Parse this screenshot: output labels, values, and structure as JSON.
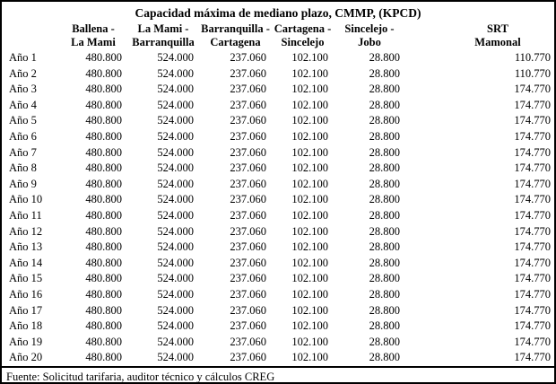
{
  "title": "Capacidad máxima de mediano plazo, CMMP, (KPCD)",
  "colors": {
    "border": "#000000",
    "text": "#000000",
    "background": "#ffffff"
  },
  "table": {
    "row_label_header": "",
    "columns": [
      {
        "line1": "Ballena -",
        "line2": "La Mami"
      },
      {
        "line1": "La Mami -",
        "line2": "Barranquilla"
      },
      {
        "line1": "Barranquilla -",
        "line2": "Cartagena"
      },
      {
        "line1": "Cartagena -",
        "line2": "Sincelejo"
      },
      {
        "line1": "Sincelejo -",
        "line2": "Jobo"
      },
      {
        "line1": "SRT",
        "line2": "Mamonal"
      }
    ],
    "rows": [
      {
        "label": "Año 1",
        "values": [
          "480.800",
          "524.000",
          "237.060",
          "102.100",
          "28.800",
          "110.770"
        ]
      },
      {
        "label": "Año 2",
        "values": [
          "480.800",
          "524.000",
          "237.060",
          "102.100",
          "28.800",
          "110.770"
        ]
      },
      {
        "label": "Año 3",
        "values": [
          "480.800",
          "524.000",
          "237.060",
          "102.100",
          "28.800",
          "174.770"
        ]
      },
      {
        "label": "Año 4",
        "values": [
          "480.800",
          "524.000",
          "237.060",
          "102.100",
          "28.800",
          "174.770"
        ]
      },
      {
        "label": "Año 5",
        "values": [
          "480.800",
          "524.000",
          "237.060",
          "102.100",
          "28.800",
          "174.770"
        ]
      },
      {
        "label": "Año 6",
        "values": [
          "480.800",
          "524.000",
          "237.060",
          "102.100",
          "28.800",
          "174.770"
        ]
      },
      {
        "label": "Año 7",
        "values": [
          "480.800",
          "524.000",
          "237.060",
          "102.100",
          "28.800",
          "174.770"
        ]
      },
      {
        "label": "Año 8",
        "values": [
          "480.800",
          "524.000",
          "237.060",
          "102.100",
          "28.800",
          "174.770"
        ]
      },
      {
        "label": "Año 9",
        "values": [
          "480.800",
          "524.000",
          "237.060",
          "102.100",
          "28.800",
          "174.770"
        ]
      },
      {
        "label": "Año 10",
        "values": [
          "480.800",
          "524.000",
          "237.060",
          "102.100",
          "28.800",
          "174.770"
        ]
      },
      {
        "label": "Año 11",
        "values": [
          "480.800",
          "524.000",
          "237.060",
          "102.100",
          "28.800",
          "174.770"
        ]
      },
      {
        "label": "Año 12",
        "values": [
          "480.800",
          "524.000",
          "237.060",
          "102.100",
          "28.800",
          "174.770"
        ]
      },
      {
        "label": "Año 13",
        "values": [
          "480.800",
          "524.000",
          "237.060",
          "102.100",
          "28.800",
          "174.770"
        ]
      },
      {
        "label": "Año 14",
        "values": [
          "480.800",
          "524.000",
          "237.060",
          "102.100",
          "28.800",
          "174.770"
        ]
      },
      {
        "label": "Año 15",
        "values": [
          "480.800",
          "524.000",
          "237.060",
          "102.100",
          "28.800",
          "174.770"
        ]
      },
      {
        "label": "Año 16",
        "values": [
          "480.800",
          "524.000",
          "237.060",
          "102.100",
          "28.800",
          "174.770"
        ]
      },
      {
        "label": "Año 17",
        "values": [
          "480.800",
          "524.000",
          "237.060",
          "102.100",
          "28.800",
          "174.770"
        ]
      },
      {
        "label": "Año 18",
        "values": [
          "480.800",
          "524.000",
          "237.060",
          "102.100",
          "28.800",
          "174.770"
        ]
      },
      {
        "label": "Año 19",
        "values": [
          "480.800",
          "524.000",
          "237.060",
          "102.100",
          "28.800",
          "174.770"
        ]
      },
      {
        "label": "Año 20",
        "values": [
          "480.800",
          "524.000",
          "237.060",
          "102.100",
          "28.800",
          "174.770"
        ]
      }
    ]
  },
  "footer": {
    "source": "Fuente: Solicitud tarifaria, auditor técnico y cálculos CREG"
  }
}
